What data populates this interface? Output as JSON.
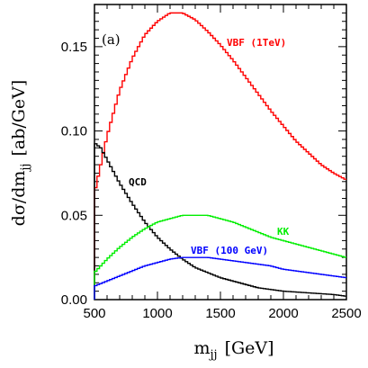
{
  "chart_data": {
    "type": "line",
    "panel_label": "(a)",
    "xlabel": "m",
    "xlabel_sub": "jj",
    "xlabel_unit": "[GeV]",
    "ylabel": "dσ/dm",
    "ylabel_sub": "jj",
    "ylabel_unit": "[ab/GeV]",
    "xlim": [
      500,
      2500
    ],
    "ylim": [
      0,
      0.175
    ],
    "x_ticks": [
      500,
      1000,
      1500,
      2000,
      2500
    ],
    "x_tick_labels": [
      "500",
      "1000",
      "1500",
      "2000",
      "2500"
    ],
    "y_ticks": [
      0,
      0.05,
      0.1,
      0.15
    ],
    "y_tick_labels": [
      "0.00",
      "0.05",
      "0.10",
      "0.15"
    ],
    "grid": false,
    "histogram": true,
    "series": [
      {
        "name": "VBF (1TeV)",
        "color": "#ff0000",
        "x": [
          500,
          550,
          600,
          700,
          800,
          900,
          1000,
          1100,
          1200,
          1300,
          1400,
          1500,
          1600,
          1700,
          1800,
          1900,
          2000,
          2100,
          2200,
          2300,
          2400,
          2500
        ],
        "values": [
          0.063,
          0.08,
          0.097,
          0.124,
          0.143,
          0.157,
          0.165,
          0.17,
          0.17,
          0.166,
          0.159,
          0.151,
          0.142,
          0.132,
          0.122,
          0.112,
          0.103,
          0.094,
          0.087,
          0.08,
          0.075,
          0.071
        ]
      },
      {
        "name": "QCD",
        "color": "#000000",
        "x": [
          500,
          550,
          600,
          650,
          700,
          800,
          900,
          1000,
          1100,
          1200,
          1300,
          1400,
          1500,
          1600,
          1800,
          2000,
          2200,
          2400,
          2500
        ],
        "values": [
          0.093,
          0.09,
          0.083,
          0.076,
          0.069,
          0.057,
          0.046,
          0.037,
          0.03,
          0.024,
          0.019,
          0.016,
          0.013,
          0.011,
          0.007,
          0.005,
          0.004,
          0.003,
          0.002
        ]
      },
      {
        "name": "KK",
        "color": "#00ee00",
        "x": [
          500,
          600,
          700,
          800,
          900,
          1000,
          1100,
          1200,
          1300,
          1400,
          1500,
          1600,
          1700,
          1800,
          1900,
          2000,
          2200,
          2400,
          2500
        ],
        "values": [
          0.016,
          0.024,
          0.031,
          0.037,
          0.042,
          0.046,
          0.048,
          0.05,
          0.05,
          0.05,
          0.048,
          0.046,
          0.043,
          0.04,
          0.037,
          0.035,
          0.031,
          0.027,
          0.025
        ]
      },
      {
        "name": "VBF (100 GeV)",
        "color": "#0000ff",
        "x": [
          500,
          600,
          700,
          800,
          900,
          1000,
          1100,
          1200,
          1300,
          1400,
          1500,
          1600,
          1700,
          1800,
          1900,
          2000,
          2200,
          2400,
          2500
        ],
        "values": [
          0.008,
          0.011,
          0.014,
          0.017,
          0.02,
          0.022,
          0.024,
          0.025,
          0.025,
          0.025,
          0.024,
          0.023,
          0.022,
          0.021,
          0.02,
          0.018,
          0.016,
          0.014,
          0.013
        ]
      }
    ]
  }
}
